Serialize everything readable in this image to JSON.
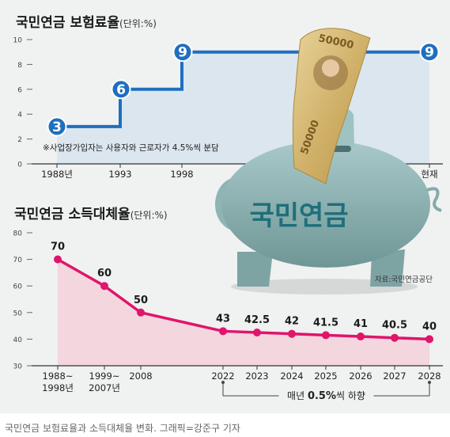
{
  "chart_data": [
    {
      "type": "line",
      "title": "국민연금 보험료율",
      "unit": "(단위:%)",
      "categories": [
        "1988년",
        "1993",
        "1998",
        "현재"
      ],
      "values": [
        3,
        6,
        9,
        9
      ],
      "yticks": [
        "0",
        "2",
        "4",
        "6",
        "8",
        "10"
      ],
      "ylim": [
        0,
        10
      ],
      "step": true,
      "note": "※사업장가입자는 사용자와 근로자가 4.5%씩 분담",
      "colors": {
        "line": "#1f6fbf",
        "fill": "#cfe0ee",
        "badge": "#1f6fbf"
      }
    },
    {
      "type": "area",
      "title": "국민연금 소득대체율",
      "unit": "(단위:%)",
      "categories": [
        "1988~\n1998년",
        "1999~\n2007년",
        "2008",
        "2022",
        "2023",
        "2024",
        "2025",
        "2026",
        "2027",
        "2028"
      ],
      "values": [
        70,
        60,
        50,
        43,
        42.5,
        42,
        41.5,
        41,
        40.5,
        40
      ],
      "labels": [
        "70",
        "60",
        "50",
        "43",
        "42.5",
        "42",
        "41.5",
        "41",
        "40.5",
        "40"
      ],
      "yticks": [
        "30",
        "40",
        "50",
        "60",
        "70",
        "80"
      ],
      "ylim": [
        30,
        80
      ],
      "annotation": {
        "pre": "매년 ",
        "bold": "0.5%",
        "post": "씩 하향"
      },
      "colors": {
        "line": "#e0156b",
        "fill": "#f3d3dc"
      }
    }
  ],
  "illustration": {
    "pig_label": "국민연금",
    "banknote_value": "50000",
    "banknote_value_tail": "50000",
    "source": "자료:국민연금공단"
  },
  "caption": "국민연금 보험료율과 소득대체율 변화. 그래픽=강준구 기자"
}
